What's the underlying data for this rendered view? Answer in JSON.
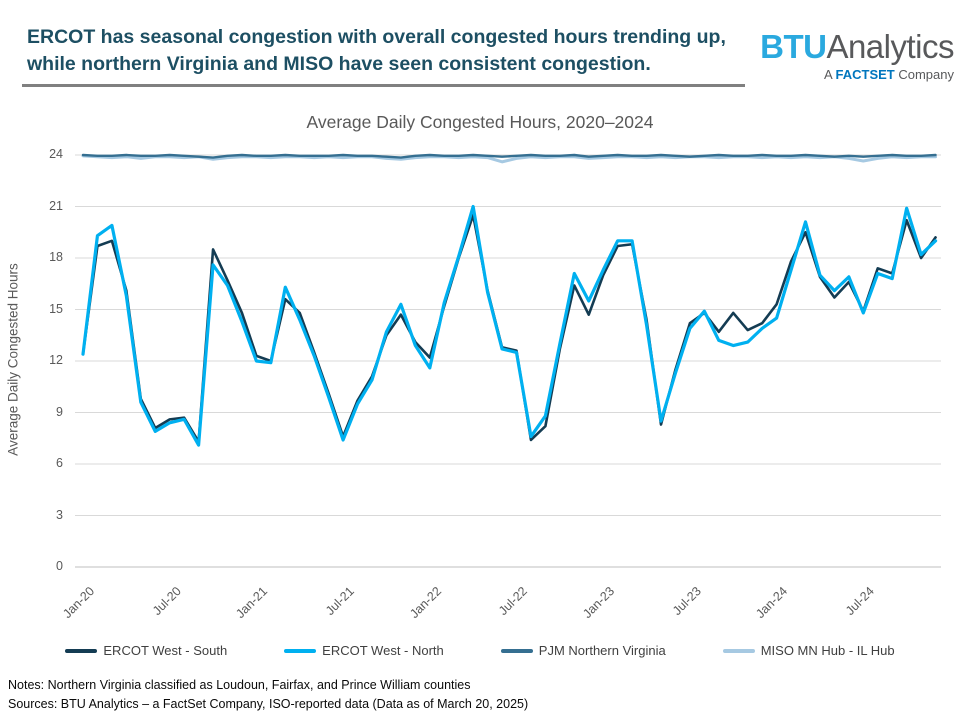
{
  "header": {
    "title_line1": "ERCOT has seasonal congestion with overall congested hours trending up,",
    "title_line2": "while northern Virginia and MISO have seen consistent congestion.",
    "title_color": "#1D4F63"
  },
  "logo": {
    "brand_bold": "BTU",
    "brand_rest": "Analytics",
    "tagline_prefix": "A ",
    "tagline_brand": "FACTSET",
    "tagline_suffix": " Company"
  },
  "chart": {
    "title": "Average Daily Congested Hours, 2020–2024",
    "y_axis_title": "Average Daily Congested Hours"
  },
  "chart_data": {
    "type": "line",
    "title": "Average Daily Congested Hours, 2020–2024",
    "xlabel": "",
    "ylabel": "Average Daily Congested Hours",
    "ylim": [
      0,
      24
    ],
    "y_ticks": [
      0,
      3,
      6,
      9,
      12,
      15,
      18,
      21,
      24
    ],
    "grid": "horizontal",
    "legend_position": "bottom",
    "x_tick_every": 6,
    "categories": [
      "Jan-20",
      "Feb-20",
      "Mar-20",
      "Apr-20",
      "May-20",
      "Jun-20",
      "Jul-20",
      "Aug-20",
      "Sep-20",
      "Oct-20",
      "Nov-20",
      "Dec-20",
      "Jan-21",
      "Feb-21",
      "Mar-21",
      "Apr-21",
      "May-21",
      "Jun-21",
      "Jul-21",
      "Aug-21",
      "Sep-21",
      "Oct-21",
      "Nov-21",
      "Dec-21",
      "Jan-22",
      "Feb-22",
      "Mar-22",
      "Apr-22",
      "May-22",
      "Jun-22",
      "Jul-22",
      "Aug-22",
      "Sep-22",
      "Oct-22",
      "Nov-22",
      "Dec-22",
      "Jan-23",
      "Feb-23",
      "Mar-23",
      "Apr-23",
      "May-23",
      "Jun-23",
      "Jul-23",
      "Aug-23",
      "Sep-23",
      "Oct-23",
      "Nov-23",
      "Dec-23",
      "Jan-24",
      "Feb-24",
      "Mar-24",
      "Apr-24",
      "May-24",
      "Jun-24",
      "Jul-24",
      "Aug-24",
      "Sep-24",
      "Oct-24",
      "Nov-24",
      "Dec-24"
    ],
    "series": [
      {
        "name": "ERCOT West - South",
        "color": "#143C53",
        "stroke_width": 2.6,
        "values": [
          12.4,
          18.7,
          19.0,
          16.1,
          9.8,
          8.1,
          8.6,
          8.7,
          7.3,
          18.5,
          16.7,
          14.8,
          12.3,
          12.0,
          15.6,
          14.8,
          12.5,
          10.1,
          7.6,
          9.7,
          11.1,
          13.5,
          14.7,
          13.1,
          12.2,
          15.2,
          18.0,
          20.5,
          16.1,
          12.8,
          12.6,
          7.4,
          8.2,
          12.7,
          16.4,
          14.7,
          17.0,
          18.7,
          18.8,
          14.4,
          8.3,
          11.5,
          14.2,
          14.8,
          13.7,
          14.8,
          13.8,
          14.2,
          15.3,
          17.8,
          19.5,
          16.9,
          15.7,
          16.6,
          14.9,
          17.4,
          17.1,
          20.2,
          18.0,
          19.2
        ]
      },
      {
        "name": "ERCOT West - North",
        "color": "#00B0F0",
        "stroke_width": 3.2,
        "values": [
          12.4,
          19.3,
          19.9,
          15.8,
          9.6,
          7.9,
          8.4,
          8.6,
          7.1,
          17.6,
          16.4,
          14.3,
          12.0,
          11.9,
          16.3,
          14.4,
          12.3,
          9.9,
          7.4,
          9.5,
          10.9,
          13.7,
          15.3,
          12.9,
          11.6,
          15.4,
          18.1,
          21.0,
          16.0,
          12.7,
          12.5,
          7.6,
          8.8,
          13.0,
          17.1,
          15.5,
          17.3,
          19.0,
          19.0,
          14.1,
          8.5,
          11.3,
          13.9,
          14.9,
          13.2,
          12.9,
          13.1,
          13.9,
          14.5,
          17.3,
          20.1,
          17.0,
          16.1,
          16.9,
          14.8,
          17.1,
          16.8,
          20.9,
          18.2,
          19.0
        ]
      },
      {
        "name": "PJM Northern Virginia",
        "color": "#356F91",
        "stroke_width": 2.4,
        "values": [
          24,
          23.95,
          23.95,
          24,
          23.95,
          23.95,
          24,
          23.95,
          23.9,
          23.85,
          23.95,
          24,
          23.95,
          23.95,
          24,
          23.95,
          23.95,
          23.95,
          24,
          23.95,
          23.95,
          23.9,
          23.85,
          23.95,
          24,
          23.95,
          23.95,
          24,
          23.95,
          23.9,
          23.95,
          24,
          23.95,
          23.95,
          24,
          23.9,
          23.95,
          24,
          23.95,
          23.95,
          24,
          23.95,
          23.9,
          23.95,
          24,
          23.95,
          23.95,
          24,
          23.95,
          23.95,
          24,
          23.95,
          23.9,
          23.95,
          23.9,
          23.95,
          24,
          23.95,
          23.95,
          24
        ]
      },
      {
        "name": "MISO MN Hub - IL Hub",
        "color": "#A6C9E2",
        "stroke_width": 3.0,
        "values": [
          23.95,
          23.9,
          23.85,
          23.9,
          23.8,
          23.9,
          23.9,
          23.85,
          23.9,
          23.75,
          23.85,
          23.9,
          23.9,
          23.85,
          23.9,
          23.9,
          23.85,
          23.9,
          23.85,
          23.9,
          23.9,
          23.8,
          23.75,
          23.85,
          23.9,
          23.9,
          23.85,
          23.9,
          23.85,
          23.6,
          23.8,
          23.9,
          23.85,
          23.9,
          23.9,
          23.8,
          23.85,
          23.9,
          23.9,
          23.85,
          23.9,
          23.85,
          23.9,
          23.9,
          23.85,
          23.9,
          23.9,
          23.85,
          23.9,
          23.85,
          23.9,
          23.85,
          23.9,
          23.8,
          23.65,
          23.8,
          23.9,
          23.85,
          23.9,
          23.9
        ]
      }
    ],
    "draw_order": [
      3,
      2,
      0,
      1
    ]
  },
  "footer": {
    "notes": "Notes: Northern Virginia classified as Loudoun, Fairfax, and Prince William counties",
    "sources": "Sources: BTU Analytics – a FactSet Company, ISO-reported data (Data as of March 20, 2025)"
  }
}
